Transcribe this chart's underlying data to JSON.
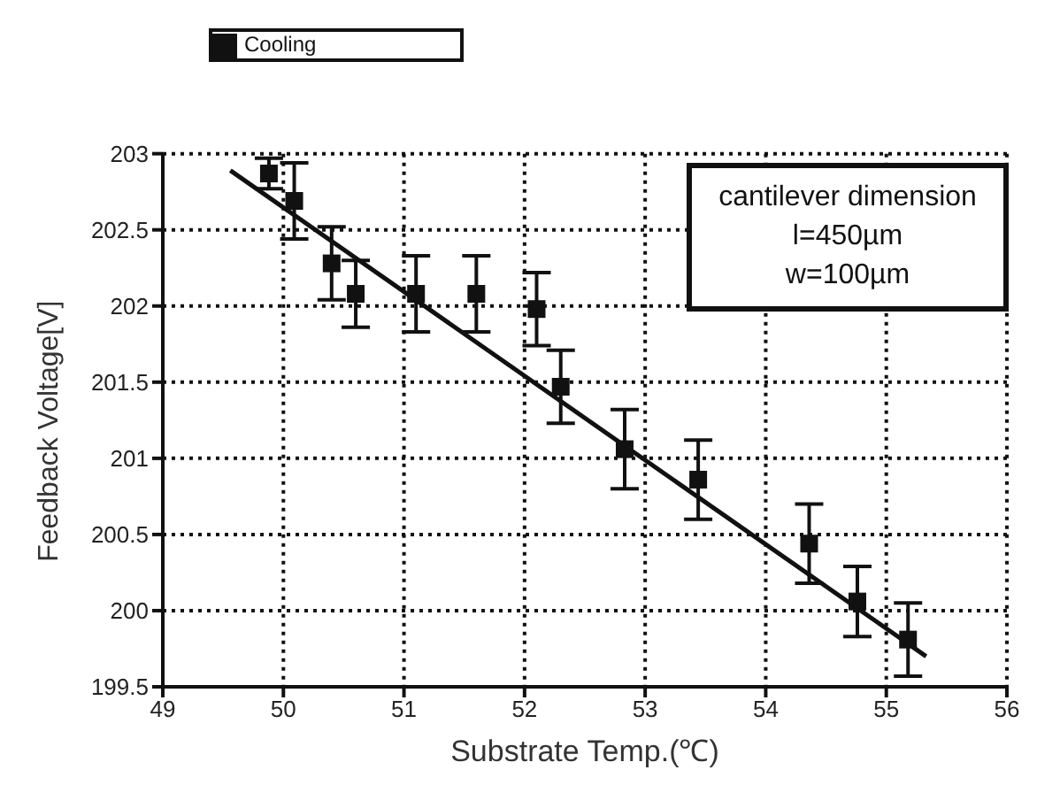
{
  "chart_data": {
    "type": "scatter",
    "xlabel": "Substrate Temp.(℃)",
    "ylabel": "Feedback Voltage[V]",
    "xlim": [
      49,
      56
    ],
    "xticks": [
      49,
      50,
      51,
      52,
      53,
      54,
      55,
      56
    ],
    "ylim": [
      199.5,
      203
    ],
    "yticks": [
      199.5,
      200,
      200.5,
      201,
      201.5,
      202,
      202.5,
      203
    ],
    "grid": true,
    "legend": "top left",
    "marker": "square",
    "annotations": [
      "cantilever dimension",
      "l=450µm",
      "w=100µm"
    ],
    "series": [
      {
        "name": "Cooling",
        "color": "#111111",
        "x": [
          49.88,
          50.09,
          50.4,
          50.6,
          51.1,
          51.6,
          52.1,
          52.3,
          52.83,
          53.44,
          54.36,
          54.76,
          55.18
        ],
        "values": [
          202.87,
          202.69,
          202.28,
          202.08,
          202.08,
          202.08,
          201.98,
          201.47,
          201.06,
          200.86,
          200.44,
          200.06,
          199.81
        ],
        "errors": [
          0.1,
          0.25,
          0.24,
          0.22,
          0.25,
          0.25,
          0.24,
          0.24,
          0.26,
          0.26,
          0.26,
          0.23,
          0.24
        ]
      },
      {
        "type": "line",
        "marker": "none",
        "color": "#111111",
        "x": [
          49.56,
          55.33
        ],
        "values": [
          202.89,
          199.7
        ]
      }
    ]
  }
}
